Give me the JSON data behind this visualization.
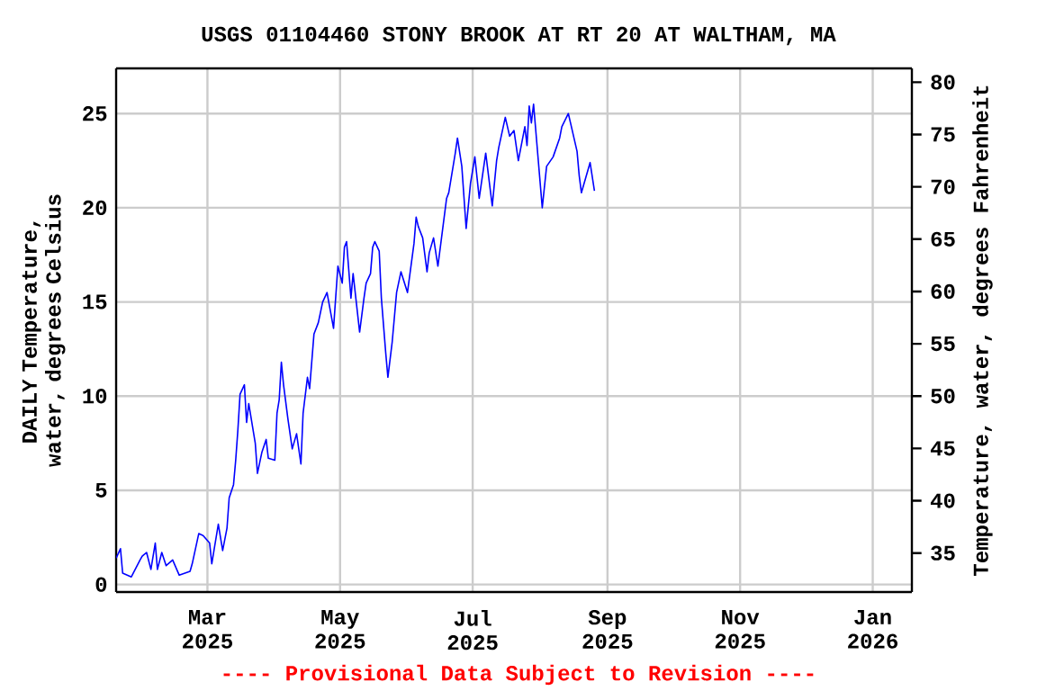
{
  "chart_data": {
    "type": "line",
    "title": "USGS 01104460 STONY BROOK AT RT 20 AT WALTHAM, MA",
    "ylabel": "DAILY Temperature, water, degrees Celsius",
    "y2label": "Temperature, water, degrees Fahrenheit",
    "annotations": [
      "---- Provisional Data Subject to Revision ----"
    ],
    "color": "#0000ff",
    "grid": true,
    "x": [
      "2025-01-18",
      "2025-01-20",
      "2025-01-21",
      "2025-01-25",
      "2025-01-29",
      "2025-01-30",
      "2025-02-01",
      "2025-02-03",
      "2025-02-05",
      "2025-02-06",
      "2025-02-08",
      "2025-02-10",
      "2025-02-13",
      "2025-02-16",
      "2025-02-21",
      "2025-02-22",
      "2025-02-25",
      "2025-02-27",
      "2025-03-02",
      "2025-03-03",
      "2025-03-04",
      "2025-03-06",
      "2025-03-08",
      "2025-03-10",
      "2025-03-11",
      "2025-03-13",
      "2025-03-14",
      "2025-03-15",
      "2025-03-16",
      "2025-03-18",
      "2025-03-19",
      "2025-03-20",
      "2025-03-23",
      "2025-03-24",
      "2025-03-26",
      "2025-03-28",
      "2025-03-29",
      "2025-04-01",
      "2025-04-02",
      "2025-04-03",
      "2025-04-04",
      "2025-04-05",
      "2025-04-07",
      "2025-04-09",
      "2025-04-11",
      "2025-04-13",
      "2025-04-14",
      "2025-04-16",
      "2025-04-17",
      "2025-04-19",
      "2025-04-21",
      "2025-04-23",
      "2025-04-25",
      "2025-04-28",
      "2025-04-30",
      "2025-05-02",
      "2025-05-03",
      "2025-05-04",
      "2025-05-06",
      "2025-05-07",
      "2025-05-10",
      "2025-05-12",
      "2025-05-13",
      "2025-05-15",
      "2025-05-16",
      "2025-05-17",
      "2025-05-19",
      "2025-05-20",
      "2025-05-22",
      "2025-05-23",
      "2025-05-25",
      "2025-05-27",
      "2025-05-29",
      "2025-06-01",
      "2025-06-04",
      "2025-06-05",
      "2025-06-06",
      "2025-06-08",
      "2025-06-10",
      "2025-06-11",
      "2025-06-13",
      "2025-06-15",
      "2025-06-19",
      "2025-06-20",
      "2025-06-23",
      "2025-06-24",
      "2025-06-26",
      "2025-06-28",
      "2025-06-30",
      "2025-07-02",
      "2025-07-04",
      "2025-07-07",
      "2025-07-10",
      "2025-07-12",
      "2025-07-13",
      "2025-07-16",
      "2025-07-18",
      "2025-07-20",
      "2025-07-22",
      "2025-07-25",
      "2025-07-26",
      "2025-07-27",
      "2025-07-28",
      "2025-07-29",
      "2025-08-02",
      "2025-08-04",
      "2025-08-07",
      "2025-08-10",
      "2025-08-11",
      "2025-08-14",
      "2025-08-15",
      "2025-08-18",
      "2025-08-19",
      "2025-08-20",
      "2025-08-22",
      "2025-08-24",
      "2025-08-26"
    ],
    "values": [
      1.4,
      1.9,
      0.6,
      0.4,
      1.3,
      1.5,
      1.7,
      0.8,
      2.2,
      0.8,
      1.7,
      1.0,
      1.3,
      0.5,
      0.7,
      1.1,
      2.7,
      2.6,
      2.2,
      1.1,
      1.8,
      3.2,
      1.8,
      3.0,
      4.6,
      5.3,
      6.6,
      8.2,
      10.1,
      10.6,
      8.6,
      9.6,
      7.5,
      5.9,
      7.0,
      7.7,
      6.7,
      6.6,
      9.1,
      9.8,
      11.8,
      10.6,
      8.8,
      7.2,
      8.0,
      6.4,
      9.1,
      11.0,
      10.4,
      13.3,
      13.9,
      15.0,
      15.5,
      13.6,
      16.9,
      16.0,
      17.9,
      18.2,
      15.2,
      16.5,
      13.4,
      15.2,
      16.0,
      16.5,
      17.9,
      18.2,
      17.7,
      15.2,
      12.3,
      11.0,
      12.9,
      15.5,
      16.6,
      15.5,
      18.1,
      19.5,
      19.0,
      18.4,
      16.6,
      17.6,
      18.4,
      16.9,
      20.5,
      20.8,
      22.9,
      23.7,
      22.2,
      18.9,
      21.3,
      22.7,
      20.5,
      22.9,
      20.1,
      22.5,
      23.2,
      24.8,
      23.8,
      24.1,
      22.5,
      24.3,
      23.3,
      25.4,
      24.5,
      25.5,
      20.0,
      22.2,
      22.7,
      23.7,
      24.3,
      25.0,
      24.5,
      23.0,
      21.7,
      20.8,
      21.6,
      22.4,
      20.9
    ],
    "xlim": [
      "2025-01-18",
      "2026-01-19"
    ],
    "xticks": [
      {
        "value": "2025-03-01",
        "label": "Mar 2025"
      },
      {
        "value": "2025-05-01",
        "label": "May 2025"
      },
      {
        "value": "2025-07-01",
        "label": "Jul 2025"
      },
      {
        "value": "2025-09-01",
        "label": "Sep 2025"
      },
      {
        "value": "2025-11-01",
        "label": "Nov 2025"
      },
      {
        "value": "2026-01-01",
        "label": "Jan 2026"
      }
    ],
    "ylim": [
      -0.4,
      27.4
    ],
    "yticks": [
      0,
      5,
      10,
      15,
      20,
      25
    ],
    "y2lim": [
      31.28,
      81.32
    ],
    "y2ticks": [
      35,
      40,
      45,
      50,
      55,
      60,
      65,
      70,
      75,
      80
    ]
  }
}
